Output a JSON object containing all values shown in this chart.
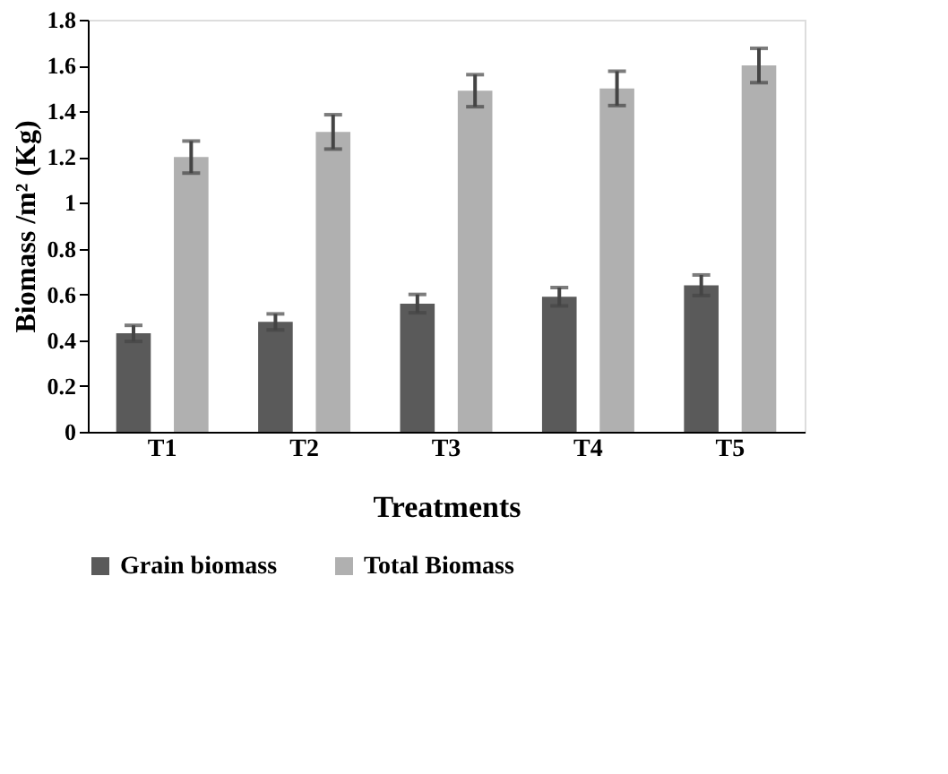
{
  "chart_data": {
    "type": "bar",
    "xlabel": "Treatments",
    "ylabel": "Biomass /m² (Kg)",
    "categories": [
      "T1",
      "T2",
      "T3",
      "T4",
      "T5"
    ],
    "series": [
      {
        "name": "Grain biomass",
        "color": "#5a5a5a",
        "values": [
          0.43,
          0.48,
          0.56,
          0.59,
          0.64
        ],
        "errors": [
          0.035,
          0.035,
          0.04,
          0.04,
          0.045
        ]
      },
      {
        "name": "Total Biomass",
        "color": "#b0b0b0",
        "values": [
          1.2,
          1.31,
          1.49,
          1.5,
          1.6
        ],
        "errors": [
          0.07,
          0.075,
          0.07,
          0.075,
          0.075
        ]
      }
    ],
    "ylim": [
      0,
      1.8
    ],
    "yticks": [
      0,
      0.2,
      0.4,
      0.6,
      0.8,
      1,
      1.2,
      1.4,
      1.6,
      1.8
    ],
    "grid": false,
    "legend": "bottom"
  }
}
